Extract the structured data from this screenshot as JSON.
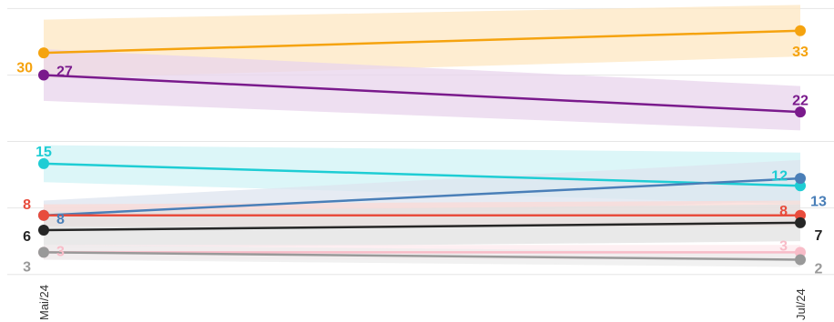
{
  "chart_data": {
    "type": "line",
    "categories": [
      "Mai/24",
      "Jul/24"
    ],
    "ylim": [
      0,
      36
    ],
    "grid": true,
    "legend": "none",
    "series": [
      {
        "values": [
          30,
          33
        ],
        "band": [
          [
            26.5,
            34.5
          ],
          [
            29.5,
            36.5
          ]
        ],
        "color": "#f5a30f",
        "band_color": "#fde7c2"
      },
      {
        "values": [
          27,
          22
        ],
        "band": [
          [
            23.5,
            30.5
          ],
          [
            19.5,
            25.5
          ]
        ],
        "color": "#7a1a8c",
        "band_color": "#e8d4ec"
      },
      {
        "values": [
          15,
          12
        ],
        "band": [
          [
            12.5,
            17.5
          ],
          [
            9.5,
            16.5
          ]
        ],
        "color": "#1ecdd4",
        "band_color": "#d0f3f5"
      },
      {
        "values": [
          8,
          13
        ],
        "band": [
          [
            6.5,
            10
          ],
          [
            10,
            15.5
          ]
        ],
        "color": "#4a7fb8",
        "band_color": "#dde4ef"
      },
      {
        "values": [
          8,
          8
        ],
        "band": [
          [
            6.5,
            9.5
          ],
          [
            6.5,
            10
          ]
        ],
        "color": "#e84c3d",
        "band_color": "#fbd9d5"
      },
      {
        "values": [
          6,
          7
        ],
        "band": [
          [
            3.5,
            8.5
          ],
          [
            4.5,
            9.5
          ]
        ],
        "color": "#262626",
        "band_color": "#e1e1e1"
      },
      {
        "values": [
          3,
          3
        ],
        "band": [
          [
            2,
            4
          ],
          [
            2,
            4
          ]
        ],
        "color": "#f8bcc8",
        "band_color": "#fde9ee"
      },
      {
        "values": [
          3,
          2
        ],
        "band": [
          [
            2,
            4
          ],
          [
            1,
            3
          ]
        ],
        "color": "#999999",
        "band_color": "#ececec"
      }
    ]
  }
}
